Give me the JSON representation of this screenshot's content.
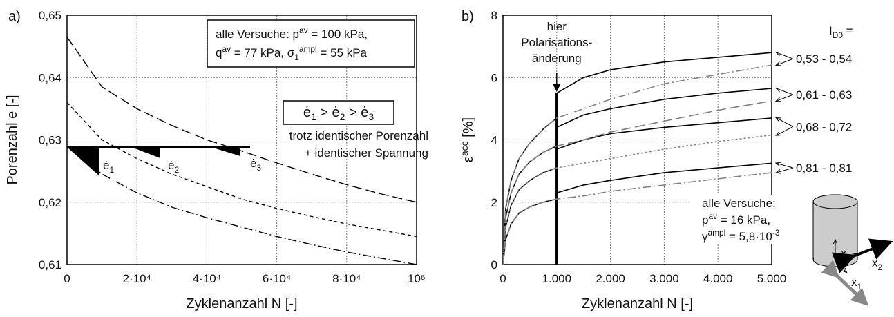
{
  "chart_data": [
    {
      "type": "line",
      "panel": "a)",
      "x_label": [
        {
          "t": "Zyklenanzahl N [-]"
        }
      ],
      "y_label": [
        {
          "t": "Porenzahl e [-]"
        }
      ],
      "xlim": [
        0,
        100000
      ],
      "xticks": [
        0,
        {
          "value": 20000,
          "label": "2·10⁴"
        },
        {
          "value": 40000,
          "label": "4·10⁴"
        },
        {
          "value": 60000,
          "label": "6·10⁴"
        },
        {
          "value": 80000,
          "label": "8·10⁴"
        },
        {
          "value": 100000,
          "label": "10⁵"
        }
      ],
      "ylim": [
        0.61,
        0.65
      ],
      "yticks": [
        {
          "value": 0.61,
          "label": "0,61"
        },
        {
          "value": 0.62,
          "label": "0,62"
        },
        {
          "value": 0.63,
          "label": "0,63"
        },
        {
          "value": 0.64,
          "label": "0,64"
        },
        {
          "value": 0.65,
          "label": "0,65"
        }
      ],
      "grid": true,
      "x": [
        0,
        10000,
        20000,
        30000,
        40000,
        50000,
        60000,
        70000,
        80000,
        90000,
        100000
      ],
      "series": [
        {
          "color": "#000000",
          "dash": "long",
          "values": [
            0.6465,
            0.6385,
            0.635,
            0.6323,
            0.63,
            0.6282,
            0.6263,
            0.6245,
            0.6228,
            0.6213,
            0.62
          ]
        },
        {
          "color": "#000000",
          "dash": "short",
          "values": [
            0.636,
            0.63,
            0.627,
            0.6245,
            0.6225,
            0.6205,
            0.619,
            0.6177,
            0.6165,
            0.6155,
            0.6145
          ]
        },
        {
          "color": "#000000",
          "dash": "dashdot",
          "values": [
            0.629,
            0.6245,
            0.6215,
            0.6192,
            0.6175,
            0.616,
            0.6145,
            0.6132,
            0.612,
            0.611,
            0.61
          ]
        }
      ],
      "info_box": [
        [
          {
            "t": "alle Versuche: p"
          },
          {
            "sup": "av"
          },
          {
            "t": " = 100 kPa,"
          }
        ],
        [
          {
            "t": "q"
          },
          {
            "sup": "av"
          },
          {
            "t": " = 77 kPa, σ"
          },
          {
            "sub": "1"
          },
          {
            "sup": "ampl"
          },
          {
            "t": " = 55 kPa"
          }
        ]
      ],
      "rate_box": [
        {
          "t": "ė"
        },
        {
          "sub": "1"
        },
        {
          "t": " > ė"
        },
        {
          "sub": "2"
        },
        {
          "t": " > ė"
        },
        {
          "sub": "3"
        }
      ],
      "note": [
        "trotz identischer Porenzahl",
        "+ identischer Spannung"
      ],
      "rate_labels": [
        [
          {
            "t": "ė"
          },
          {
            "sub": "1"
          }
        ],
        [
          {
            "t": "ė"
          },
          {
            "sub": "2"
          }
        ],
        [
          {
            "t": "ė"
          },
          {
            "sub": "3"
          }
        ]
      ]
    },
    {
      "type": "line",
      "panel": "b)",
      "x_label": [
        {
          "t": "Zyklenanzahl N [-]"
        }
      ],
      "y_label": [
        {
          "t": "ε"
        },
        {
          "sup": "acc"
        },
        {
          "t": " [%]"
        }
      ],
      "xlim": [
        0,
        5000
      ],
      "xticks": [
        0,
        {
          "value": 1000,
          "label": "1.000"
        },
        {
          "value": 2000,
          "label": "2.000"
        },
        {
          "value": 3000,
          "label": "3.000"
        },
        {
          "value": 4000,
          "label": "4.000"
        },
        {
          "value": 5000,
          "label": "5.000"
        }
      ],
      "ylim": [
        0,
        8
      ],
      "yticks": [
        0,
        2,
        4,
        6,
        8
      ],
      "grid": true,
      "x": [
        0,
        50,
        150,
        300,
        500,
        750,
        1000,
        1000,
        1500,
        2000,
        3000,
        4000,
        5000
      ],
      "series": [
        {
          "color": "#000000",
          "dash": "solid",
          "values": [
            0,
            1.8,
            2.7,
            3.4,
            3.9,
            4.35,
            4.7,
            5.5,
            6.0,
            6.25,
            6.5,
            6.65,
            6.8
          ]
        },
        {
          "color": "#000000",
          "dash": "solid",
          "values": [
            0,
            1.5,
            2.3,
            2.9,
            3.3,
            3.6,
            3.8,
            4.4,
            4.8,
            5.0,
            5.3,
            5.5,
            5.65
          ]
        },
        {
          "color": "#000000",
          "dash": "solid",
          "values": [
            0,
            1.2,
            1.9,
            2.4,
            2.7,
            2.95,
            3.1,
            3.7,
            4.0,
            4.2,
            4.4,
            4.55,
            4.7
          ]
        },
        {
          "color": "#000000",
          "dash": "solid",
          "values": [
            0,
            0.8,
            1.3,
            1.65,
            1.85,
            2.0,
            2.1,
            2.3,
            2.55,
            2.7,
            2.95,
            3.1,
            3.25
          ]
        },
        {
          "color": "#808080",
          "dash": "dashdot",
          "values": [
            0,
            1.8,
            2.7,
            3.4,
            3.9,
            4.35,
            4.7,
            4.7,
            5.0,
            5.3,
            5.8,
            6.1,
            6.4
          ]
        },
        {
          "color": "#808080",
          "dash": "long",
          "values": [
            0,
            1.5,
            2.3,
            2.9,
            3.3,
            3.6,
            3.8,
            3.8,
            4.0,
            4.25,
            4.6,
            4.95,
            5.25
          ]
        },
        {
          "color": "#808080",
          "dash": "dotted",
          "values": [
            0,
            1.2,
            1.9,
            2.4,
            2.7,
            2.95,
            3.1,
            3.1,
            3.25,
            3.4,
            3.7,
            3.95,
            4.15
          ]
        },
        {
          "color": "#808080",
          "dash": "dashdot",
          "values": [
            0,
            0.8,
            1.3,
            1.65,
            1.85,
            2.0,
            2.1,
            2.1,
            2.2,
            2.35,
            2.55,
            2.75,
            2.95
          ]
        }
      ],
      "group_header": [
        {
          "t": "I"
        },
        {
          "sub": "D0"
        },
        {
          "t": " ="
        }
      ],
      "group_labels": [
        "0,53 - 0,54",
        "0,61 - 0,63",
        "0,68 - 0,72",
        "0,81 - 0,81"
      ],
      "event_note": [
        "hier",
        "Polarisations-",
        "änderung"
      ],
      "info": [
        [
          {
            "t": "alle Versuche:"
          }
        ],
        [
          {
            "t": "p"
          },
          {
            "sup": "av"
          },
          {
            "t": " = 16 kPa,"
          }
        ],
        [
          {
            "t": "γ"
          },
          {
            "sup": "ampl"
          },
          {
            "t": " = 5,8·10"
          },
          {
            "sup": "-3"
          }
        ]
      ],
      "axes_labels": [
        [
          {
            "t": "x"
          },
          {
            "sub": "3"
          }
        ],
        [
          {
            "t": "x"
          },
          {
            "sub": "2"
          }
        ],
        [
          {
            "t": "x"
          },
          {
            "sub": "1"
          }
        ]
      ]
    }
  ]
}
